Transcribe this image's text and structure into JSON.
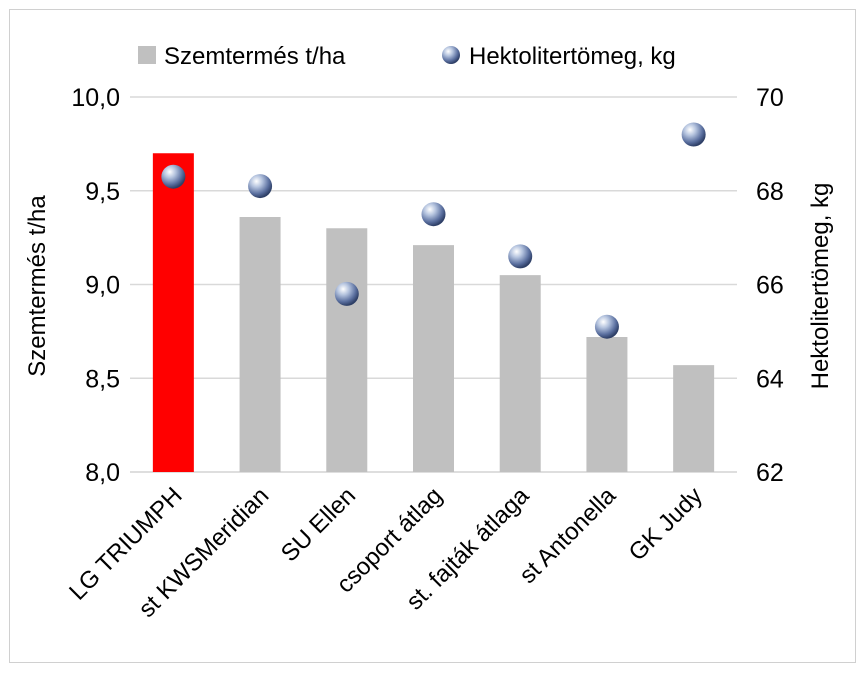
{
  "chart_data": {
    "type": "bar",
    "categories": [
      "LG TRIUMPH",
      "st KWSMeridian",
      "SU Ellen",
      "csoport átlag",
      "st. fajták átlaga",
      "st Antonella",
      "GK Judy"
    ],
    "series": [
      {
        "name": "Szemtermés t/ha",
        "type": "bar",
        "axis": "left",
        "values": [
          9.7,
          9.36,
          9.3,
          9.21,
          9.05,
          8.72,
          8.57
        ],
        "color": "#c0c0c0",
        "highlight": {
          "index": 0,
          "color": "#ff0000"
        }
      },
      {
        "name": "Hektolitertömeg, kg",
        "type": "scatter",
        "axis": "right",
        "values": [
          68.3,
          68.1,
          65.8,
          67.5,
          66.6,
          65.1,
          69.2
        ],
        "color": "#5a6f9f"
      }
    ],
    "ylabel": "Szemtermés t/ha",
    "y2label": "Hektolitertömeg, kg",
    "ylim": [
      8.0,
      10.0
    ],
    "y2lim": [
      62,
      70
    ],
    "yticks": [
      "8,0",
      "8,5",
      "9,0",
      "9,5",
      "10,0"
    ],
    "y2ticks": [
      "62",
      "64",
      "66",
      "68",
      "70"
    ],
    "grid": true,
    "legend": "top"
  }
}
